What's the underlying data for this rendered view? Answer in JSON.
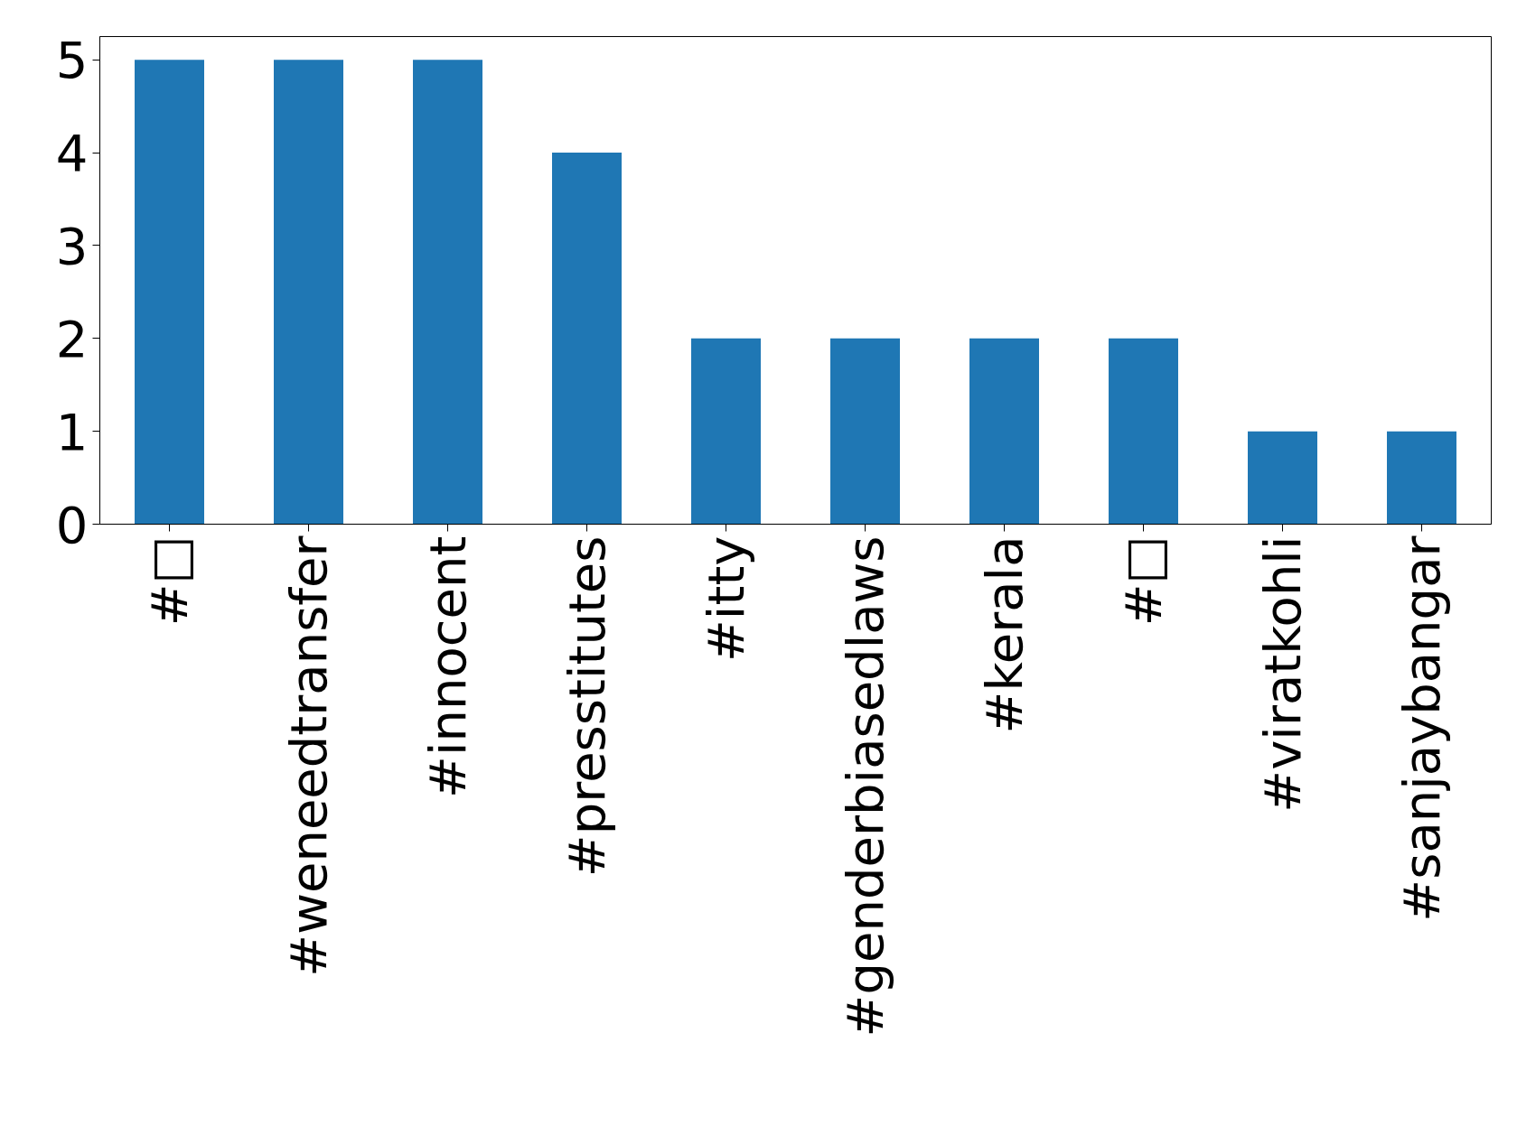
{
  "chart_data": {
    "type": "bar",
    "categories": [
      "#□",
      "#weneedtransfer",
      "#innocent",
      "#presstitutes",
      "#itty",
      "#genderbiasedlaws",
      "#kerala",
      "#□",
      "#viratkohli",
      "#sanjaybangar"
    ],
    "values": [
      5,
      5,
      5,
      4,
      2,
      2,
      2,
      2,
      1,
      1
    ],
    "color": "#1f77b4",
    "ylim": [
      0,
      5.25
    ],
    "yticks": [
      0,
      1,
      2,
      3,
      4,
      5
    ],
    "grid": false
  }
}
